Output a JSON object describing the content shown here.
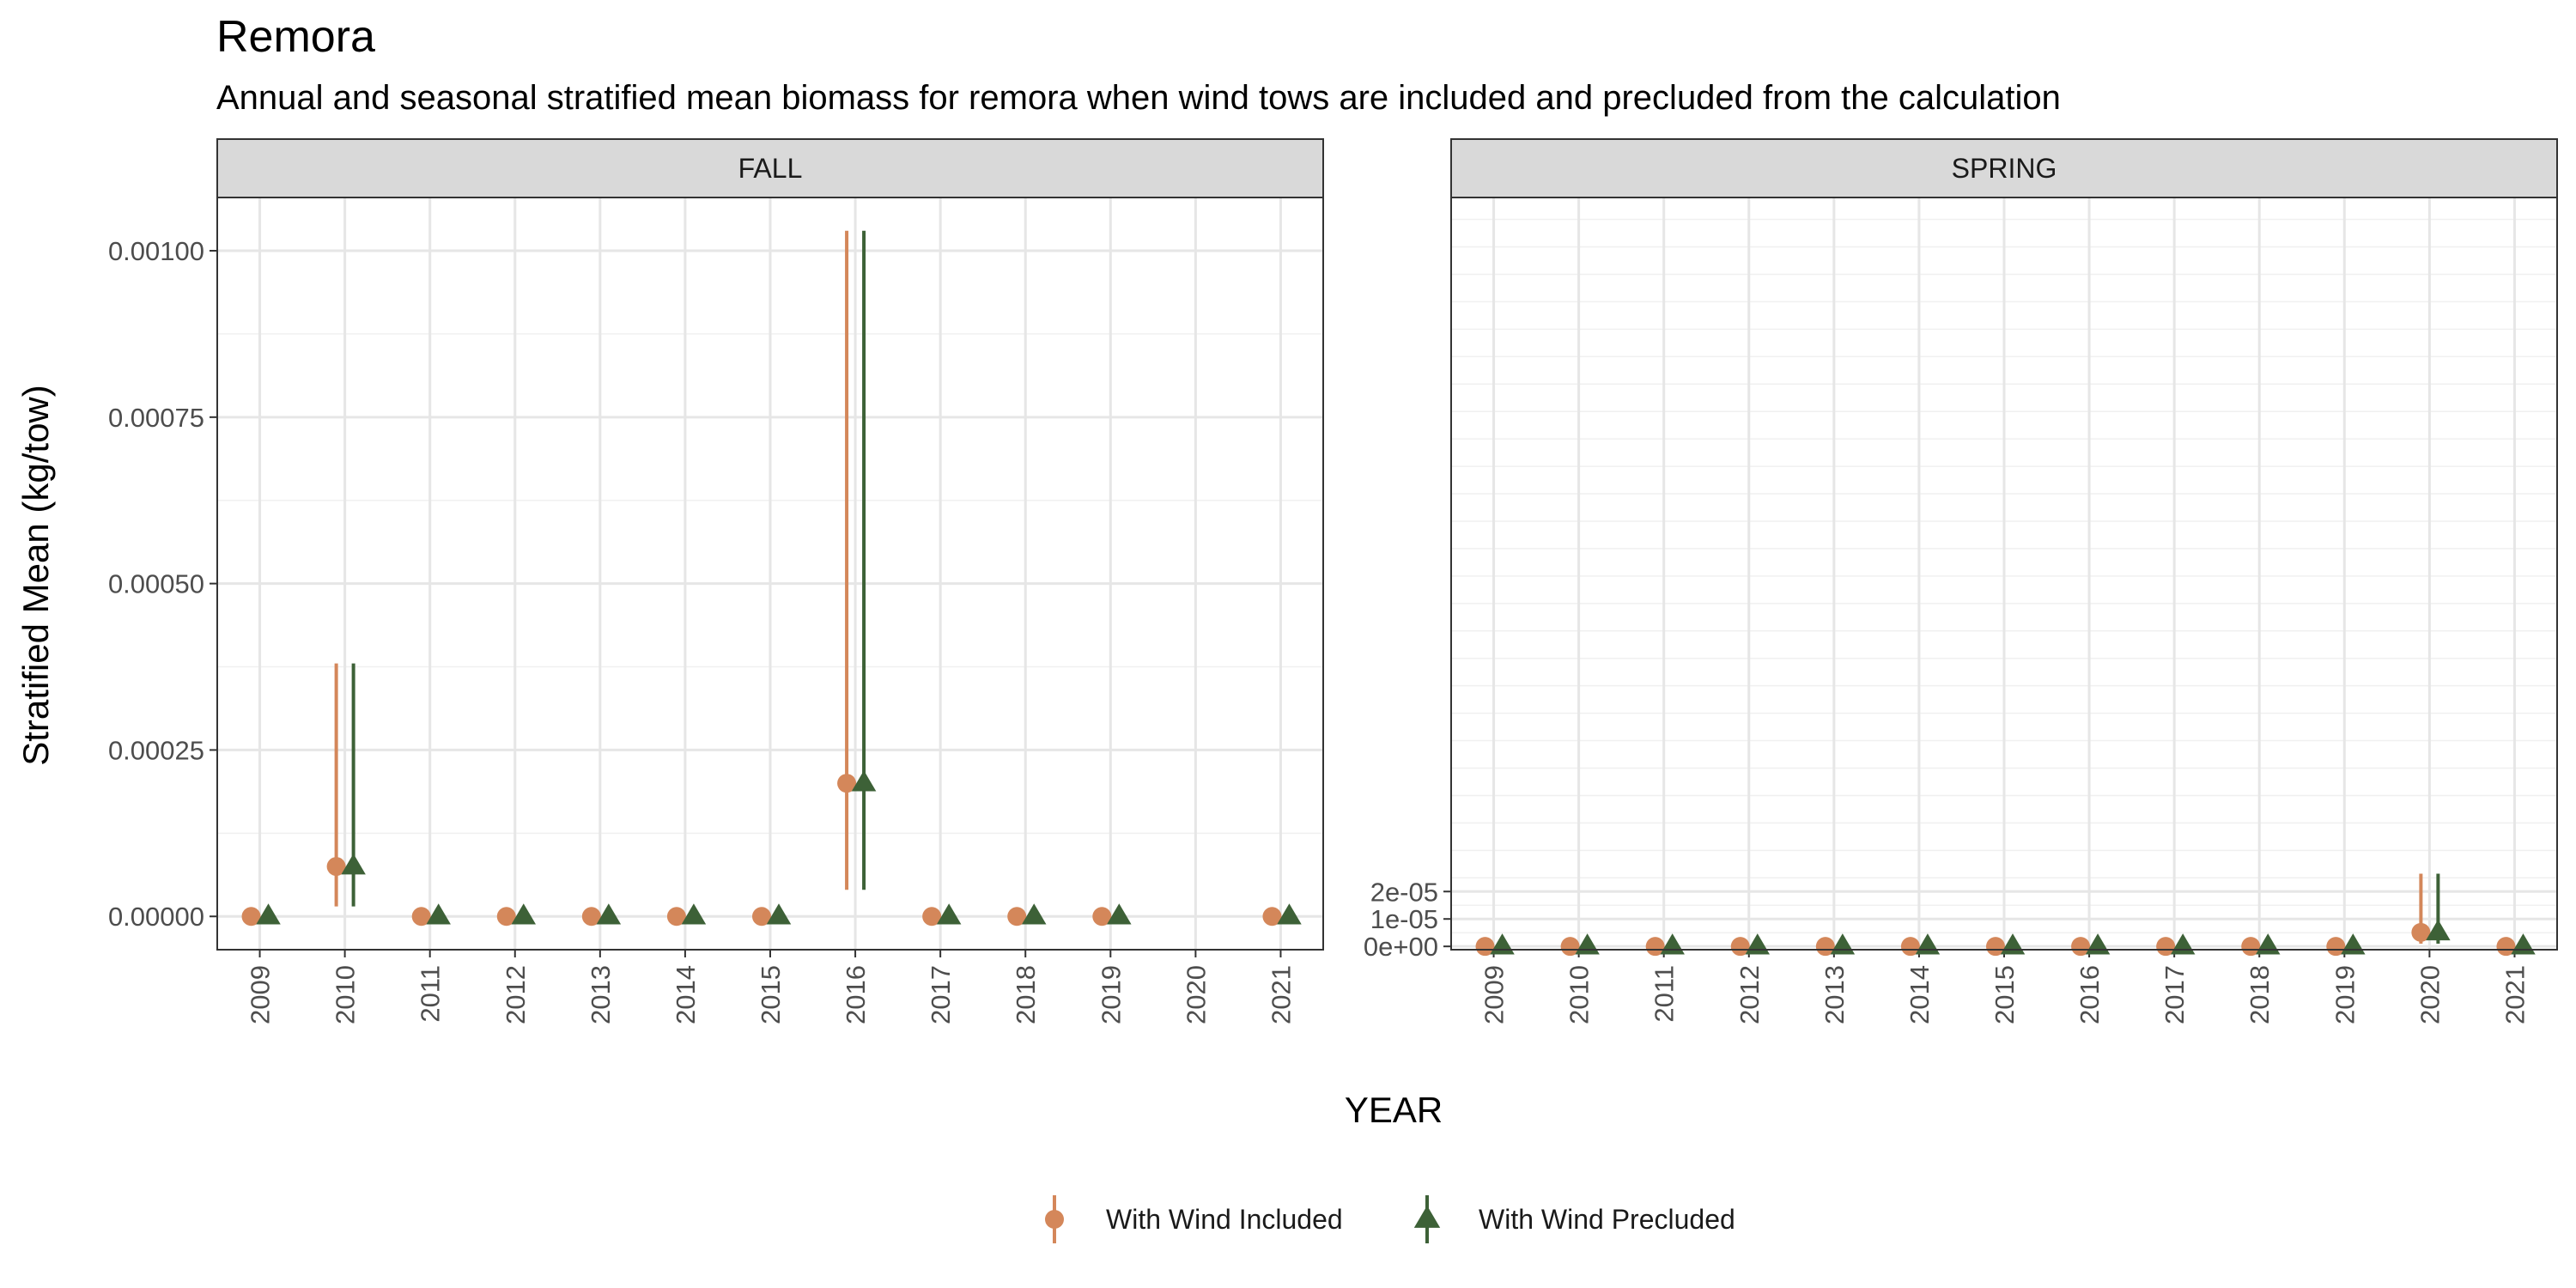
{
  "chart_data": {
    "type": "scatter",
    "title": "Remora",
    "subtitle": "Annual and seasonal stratified mean biomass for remora when wind tows are included and precluded from the calculation",
    "xlabel": "YEAR",
    "ylabel": "Stratified Mean (kg/tow)",
    "legend_position": "bottom",
    "grid": true,
    "series_styles": [
      {
        "name": "With Wind Included",
        "color": "#D4875A",
        "marker": "circle"
      },
      {
        "name": "With Wind Precluded",
        "color": "#3D6137",
        "marker": "triangle"
      }
    ],
    "panels": [
      {
        "strip": "FALL",
        "categories": [
          "2009",
          "2010",
          "2011",
          "2012",
          "2013",
          "2014",
          "2015",
          "2016",
          "2017",
          "2018",
          "2019",
          "2020",
          "2021"
        ],
        "ylim": [
          -5e-05,
          0.00108
        ],
        "y_ticks": [
          0,
          0.00025,
          0.0005,
          0.00075,
          0.001
        ],
        "y_tick_labels": [
          "0.00000",
          "0.00025",
          "0.00050",
          "0.00075",
          "0.00100"
        ],
        "series": [
          {
            "name": "With Wind Included",
            "values": [
              0,
              7.5e-05,
              0,
              0,
              0,
              0,
              0,
              0.0002,
              0,
              0,
              0,
              null,
              0
            ],
            "lower": [
              0,
              1.5e-05,
              0,
              0,
              0,
              0,
              0,
              4e-05,
              0,
              0,
              0,
              null,
              0
            ],
            "upper": [
              0,
              0.00038,
              0,
              0,
              0,
              0,
              0,
              0.00103,
              0,
              0,
              0,
              null,
              0
            ]
          },
          {
            "name": "With Wind Precluded",
            "values": [
              0,
              7.5e-05,
              0,
              0,
              0,
              0,
              0,
              0.0002,
              0,
              0,
              0,
              null,
              0
            ],
            "lower": [
              0,
              1.5e-05,
              0,
              0,
              0,
              0,
              0,
              4e-05,
              0,
              0,
              0,
              null,
              0
            ],
            "upper": [
              0,
              0.00038,
              0,
              0,
              0,
              0,
              0,
              0.00103,
              0,
              0,
              0,
              null,
              0
            ]
          }
        ]
      },
      {
        "strip": "SPRING",
        "categories": [
          "2009",
          "2010",
          "2011",
          "2012",
          "2013",
          "2014",
          "2015",
          "2016",
          "2017",
          "2018",
          "2019",
          "2020",
          "2021"
        ],
        "ylim": [
          -1.2e-06,
          0.000273
        ],
        "y_ticks": [
          0,
          1e-05,
          2e-05
        ],
        "y_tick_labels": [
          "0e+00",
          "1e-05",
          "2e-05"
        ],
        "series": [
          {
            "name": "With Wind Included",
            "values": [
              0,
              0,
              0,
              0,
              0,
              0,
              0,
              0,
              0,
              0,
              0,
              5.1e-06,
              0
            ],
            "lower": [
              0,
              0,
              0,
              0,
              0,
              0,
              0,
              0,
              0,
              0,
              0,
              1e-06,
              0
            ],
            "upper": [
              0,
              0,
              0,
              0,
              0,
              0,
              0,
              0,
              0,
              0,
              0,
              2.65e-05,
              0
            ]
          },
          {
            "name": "With Wind Precluded",
            "values": [
              0,
              0,
              0,
              0,
              0,
              0,
              0,
              0,
              0,
              0,
              0,
              5.1e-06,
              0
            ],
            "lower": [
              0,
              0,
              0,
              0,
              0,
              0,
              0,
              0,
              0,
              0,
              0,
              1e-06,
              0
            ],
            "upper": [
              0,
              0,
              0,
              0,
              0,
              0,
              0,
              0,
              0,
              0,
              0,
              2.65e-05,
              0
            ]
          }
        ]
      }
    ]
  }
}
